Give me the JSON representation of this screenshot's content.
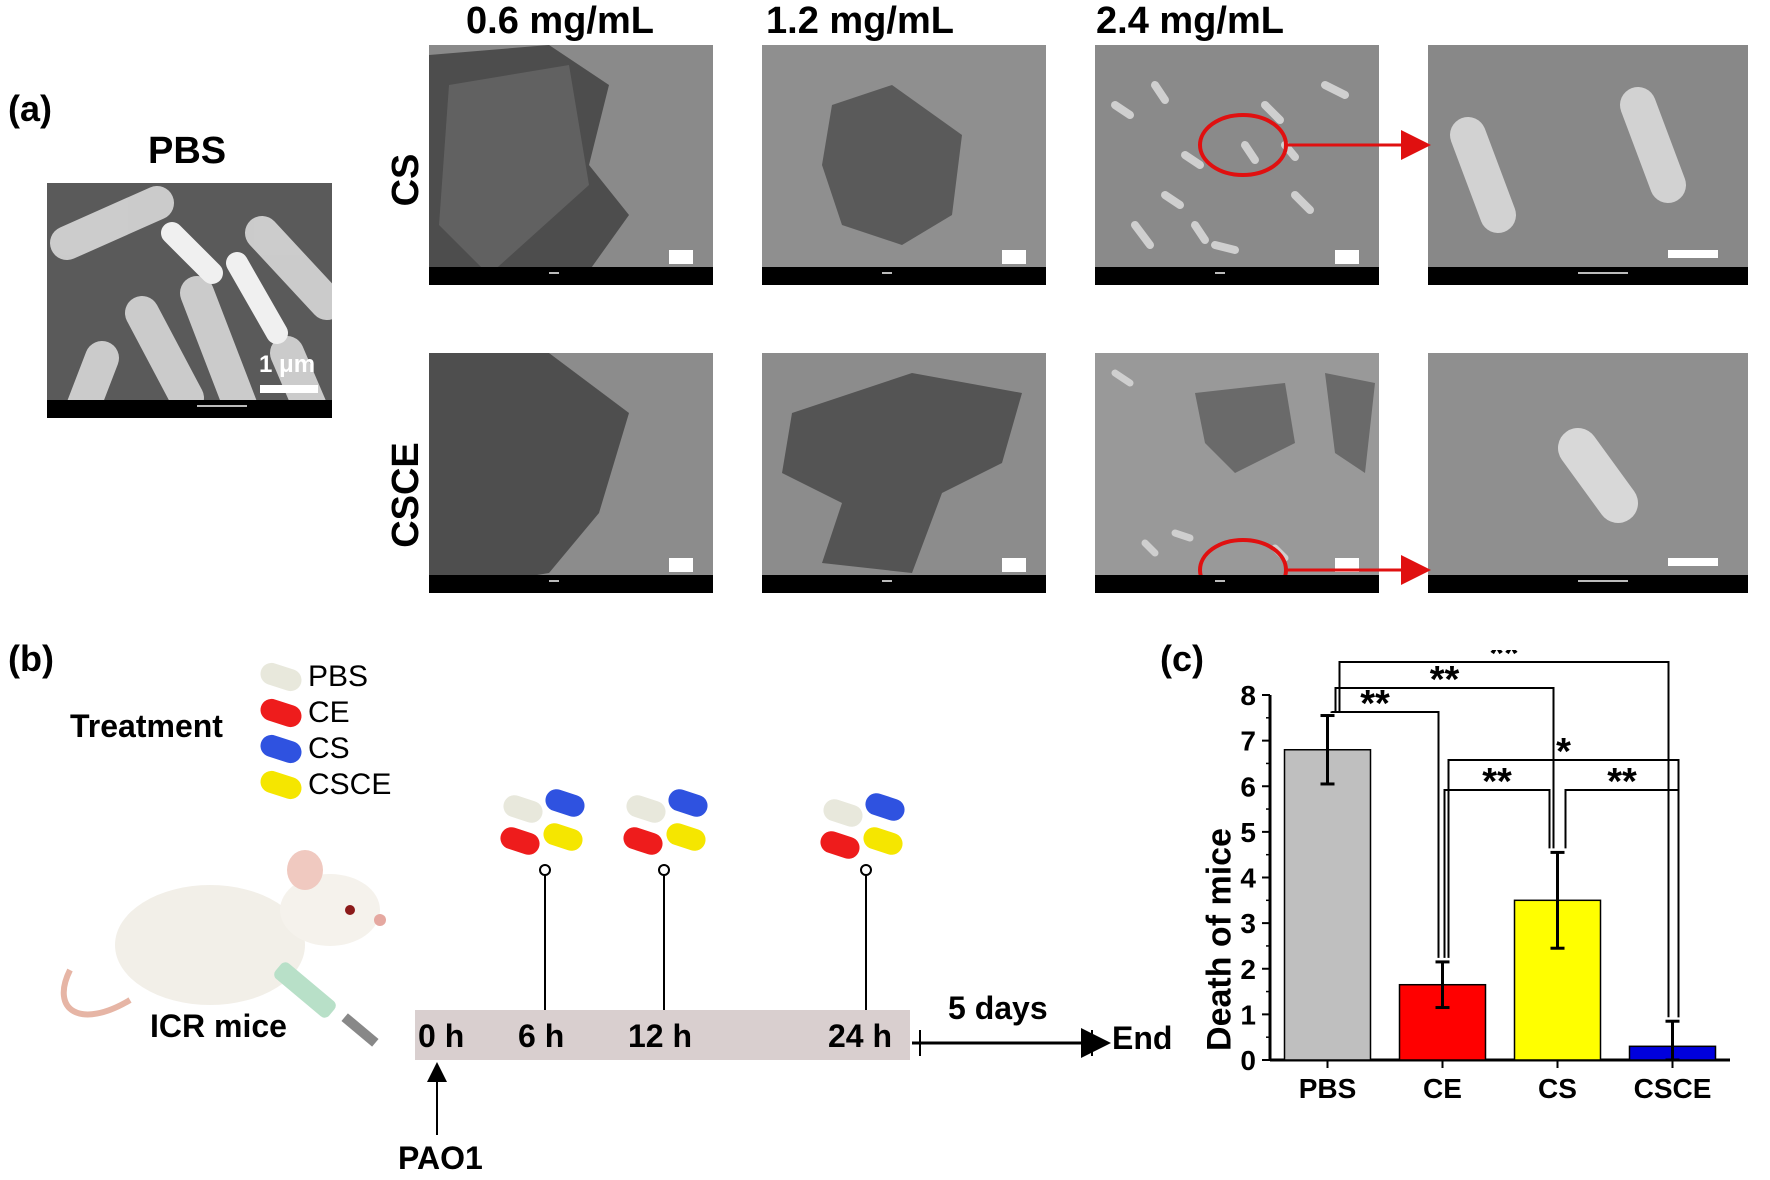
{
  "panel_a": {
    "label": "(a)",
    "pbs_title": "PBS",
    "pbs_scale_label": "1 μm",
    "columns": [
      "0.6 mg/mL",
      "1.2 mg/mL",
      "2.4 mg/mL"
    ],
    "rows": [
      "CS",
      "CSCE"
    ]
  },
  "panel_b": {
    "label": "(b)",
    "treatment_label": "Treatment",
    "legend": [
      {
        "name": "PBS",
        "color": "#e8e8dc"
      },
      {
        "name": "CE",
        "color": "#ee1c1c"
      },
      {
        "name": "CS",
        "color": "#2f52e0"
      },
      {
        "name": "CSCE",
        "color": "#f5e600"
      }
    ],
    "mouse_label": "ICR mice",
    "timepoints": [
      "0 h",
      "6 h",
      "12 h",
      "24 h"
    ],
    "duration_label": "5 days",
    "end_label": "End",
    "infection_label": "PAO1"
  },
  "chart_data": {
    "type": "bar",
    "panel_label": "(c)",
    "categories": [
      "PBS",
      "CE",
      "CS",
      "CSCE"
    ],
    "values": [
      6.8,
      1.65,
      3.5,
      0.3
    ],
    "errors": [
      0.75,
      0.5,
      1.05,
      0.55
    ],
    "colors": [
      "#bfbfbf",
      "#ff0000",
      "#ffff00",
      "#0000dd"
    ],
    "ylabel": "Death of mice",
    "xlabel": "",
    "ylim": [
      0,
      8
    ],
    "yticks": [
      "0",
      "1",
      "2",
      "3",
      "4",
      "5",
      "6",
      "7",
      "8"
    ],
    "significance": [
      {
        "from": "PBS",
        "to": "CE",
        "label": "**"
      },
      {
        "from": "PBS",
        "to": "CS",
        "label": "**"
      },
      {
        "from": "PBS",
        "to": "CSCE",
        "label": "**"
      },
      {
        "from": "CE",
        "to": "CSCE",
        "label": "*"
      },
      {
        "from": "CE",
        "to": "CS",
        "label": "**"
      },
      {
        "from": "CS",
        "to": "CSCE",
        "label": "**"
      }
    ]
  }
}
